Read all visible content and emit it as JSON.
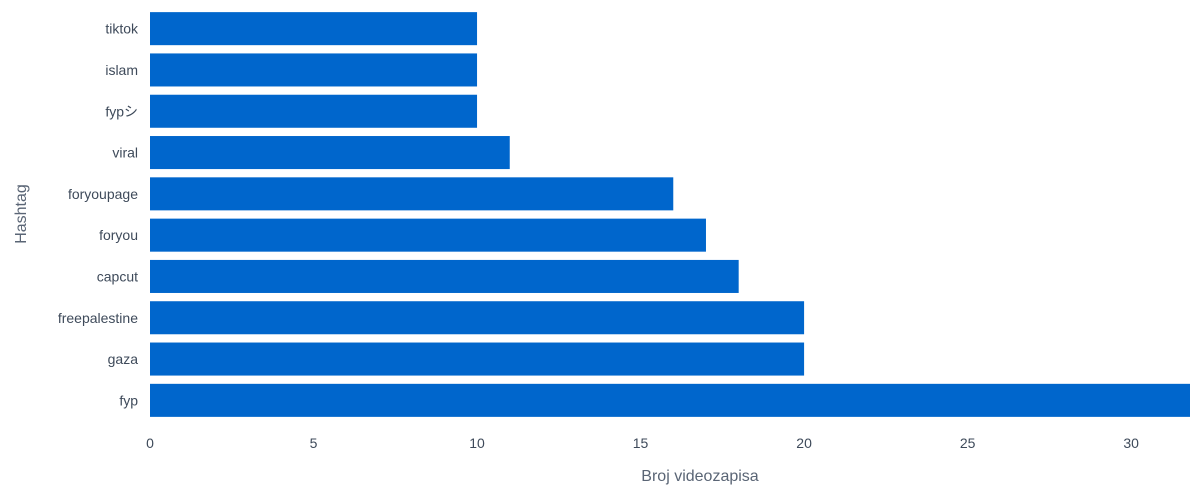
{
  "chart_data": {
    "type": "bar",
    "orientation": "horizontal",
    "xlabel": "Broj videozapisa",
    "ylabel": "Hashtag",
    "categories": [
      "tiktok",
      "islam",
      "fypシ",
      "viral",
      "foryoupage",
      "foryou",
      "capcut",
      "freepalestine",
      "gaza",
      "fyp"
    ],
    "values": [
      10,
      10,
      10,
      11,
      16,
      17,
      18,
      20,
      20,
      32
    ],
    "xlim": [
      0,
      31.8
    ],
    "xticks": [
      0,
      5,
      10,
      15,
      20,
      25,
      30
    ],
    "grid": false,
    "bar_color": "#0066cc",
    "text_color": "#3e4a5a"
  }
}
